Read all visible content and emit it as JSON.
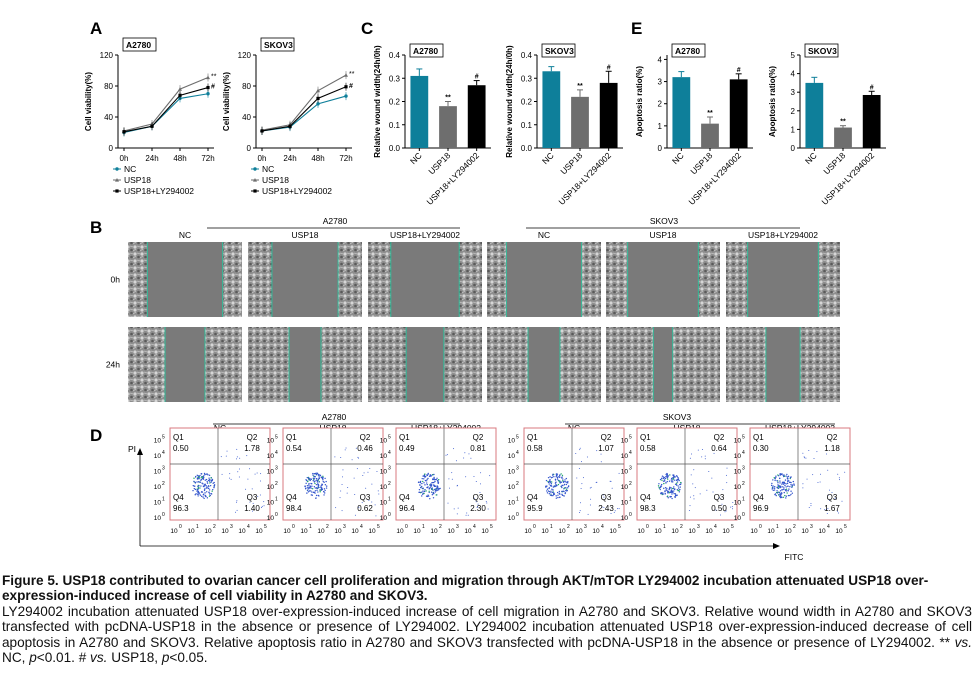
{
  "panel_letters": [
    "A",
    "B",
    "C",
    "D",
    "E"
  ],
  "colors": {
    "nc": "#0e7f9a",
    "usp18": "#6e6e6e",
    "usp18_ly": "#000000",
    "scatter": "#3355cc",
    "box": "#d9787f",
    "edge": "#33bb99"
  },
  "chart_data": [
    {
      "type": "line",
      "panel": "A",
      "cell_line": "A2780",
      "ylabel": "Cell viability(%)",
      "categories": [
        "0h",
        "24h",
        "48h",
        "72h"
      ],
      "yticks": [
        "0",
        "40",
        "80",
        "120"
      ],
      "ylim": [
        0,
        120
      ],
      "series": [
        {
          "name": "NC",
          "values": [
            20,
            28,
            64,
            70
          ]
        },
        {
          "name": "USP18",
          "values": [
            22,
            31,
            76,
            91
          ]
        },
        {
          "name": "USP18+LY294002",
          "values": [
            21,
            28,
            68,
            78
          ]
        }
      ],
      "annotations": [
        "**",
        "#"
      ]
    },
    {
      "type": "line",
      "panel": "A",
      "cell_line": "SKOV3",
      "ylabel": "Cell viability(%)",
      "categories": [
        "0h",
        "24h",
        "48h",
        "72h"
      ],
      "yticks": [
        "0",
        "40",
        "80",
        "120"
      ],
      "ylim": [
        0,
        120
      ],
      "series": [
        {
          "name": "NC",
          "values": [
            22,
            27,
            57,
            67
          ]
        },
        {
          "name": "USP18",
          "values": [
            23,
            30,
            74,
            94
          ]
        },
        {
          "name": "USP18+LY294002",
          "values": [
            22,
            28,
            64,
            79
          ]
        }
      ],
      "annotations": [
        "**",
        "#"
      ]
    },
    {
      "type": "bar",
      "panel": "C",
      "cell_line": "A2780",
      "ylabel": "Relative wound width(24h/0h)",
      "categories": [
        "NC",
        "USP18",
        "USP18+LY294002"
      ],
      "yticks": [
        "0.0",
        "0.1",
        "0.2",
        "0.3",
        "0.4"
      ],
      "ylim": [
        0,
        0.4
      ],
      "values": [
        0.31,
        0.18,
        0.27
      ],
      "errors": [
        0.03,
        0.02,
        0.02
      ],
      "annotations": [
        "",
        "**",
        "#"
      ]
    },
    {
      "type": "bar",
      "panel": "C",
      "cell_line": "SKOV3",
      "ylabel": "Relative wound width(24h/0h)",
      "categories": [
        "NC",
        "USP18",
        "USP18+LY294002"
      ],
      "yticks": [
        "0.0",
        "0.1",
        "0.2",
        "0.3",
        "0.4"
      ],
      "ylim": [
        0,
        0.4
      ],
      "values": [
        0.33,
        0.22,
        0.28
      ],
      "errors": [
        0.02,
        0.03,
        0.05
      ],
      "annotations": [
        "",
        "**",
        "#"
      ]
    },
    {
      "type": "bar",
      "panel": "E",
      "cell_line": "A2780",
      "ylabel": "Apoptosis ratio(%)",
      "categories": [
        "NC",
        "USP18",
        "USP18+LY294002"
      ],
      "yticks": [
        "0",
        "1",
        "2",
        "3",
        "4"
      ],
      "ylim": [
        0,
        4.2
      ],
      "values": [
        3.2,
        1.1,
        3.1
      ],
      "errors": [
        0.25,
        0.3,
        0.25
      ],
      "annotations": [
        "",
        "**",
        "#"
      ]
    },
    {
      "type": "bar",
      "panel": "E",
      "cell_line": "SKOV3",
      "ylabel": "Apoptosis ratio(%)",
      "categories": [
        "NC",
        "USP18",
        "USP18+LY294002"
      ],
      "yticks": [
        "0",
        "1",
        "2",
        "3",
        "4",
        "5"
      ],
      "ylim": [
        0,
        5
      ],
      "values": [
        3.5,
        1.1,
        2.85
      ],
      "errors": [
        0.3,
        0.1,
        0.2
      ],
      "annotations": [
        "",
        "**",
        "#"
      ]
    }
  ],
  "panel_b": {
    "groups": [
      "A2780",
      "SKOV3"
    ],
    "conditions": [
      "NC",
      "USP18",
      "USP18+LY294002"
    ],
    "timepoints": [
      "0h",
      "24h"
    ],
    "gap_widths": [
      [
        0.66,
        0.58,
        0.6,
        0.66,
        0.62,
        0.62
      ],
      [
        0.35,
        0.28,
        0.33,
        0.28,
        0.17,
        0.3
      ]
    ]
  },
  "panel_d": {
    "groups": [
      "A2780",
      "SKOV3"
    ],
    "conditions": [
      "NC",
      "USP18",
      "USP18+LY294002"
    ],
    "y_axis_label": "PI",
    "x_axis_label": "FITC",
    "axis_ticks": [
      "10",
      "0",
      "10",
      "1",
      "10",
      "2",
      "10",
      "3",
      "10",
      "4",
      "10",
      "5"
    ],
    "quadrant_labels": [
      "Q1",
      "Q2",
      "Q3",
      "Q4"
    ],
    "plots": [
      {
        "q1": "0.50",
        "q2": "1.78",
        "q3": "1.40",
        "q4": "96.3"
      },
      {
        "q1": "0.54",
        "q2": "0.46",
        "q3": "0.62",
        "q4": "98.4"
      },
      {
        "q1": "0.49",
        "q2": "0.81",
        "q3": "2.30",
        "q4": "96.4"
      },
      {
        "q1": "0.58",
        "q2": "1.07",
        "q3": "2.43",
        "q4": "95.9"
      },
      {
        "q1": "0.58",
        "q2": "0.64",
        "q3": "0.50",
        "q4": "98.3"
      },
      {
        "q1": "0.30",
        "q2": "1.18",
        "q3": "1.67",
        "q4": "96.9"
      }
    ]
  },
  "caption": {
    "fig_label": "Figure 5.",
    "title": "USP18 contributed to ovarian cancer cell proliferation and migration through AKT/mTOR LY294002 incubation attenuated USP18 over-expression-induced increase of cell viability in A2780 and SKOV3.",
    "body": "LY294002 incubation attenuated USP18 over-expression-induced increase of cell migration in A2780 and SKOV3. Relative wound width in A2780 and SKOV3 transfected with pcDNA-USP18 in the absence or presence of LY294002. LY294002 incubation attenuated USP18 over-expression-induced decrease of cell apoptosis in A2780 and SKOV3. Relative apoptosis ratio in A2780 and SKOV3 transfected with pcDNA-USP18 in the absence or presence of LY294002. ** ",
    "vs1": "vs.",
    "nc_txt": " NC, ",
    "p1": "p",
    "lt1": "<0.01. # ",
    "vs2": "vs.",
    "usp_txt": " USP18, ",
    "p2": "p",
    "lt2": "<0.05."
  }
}
